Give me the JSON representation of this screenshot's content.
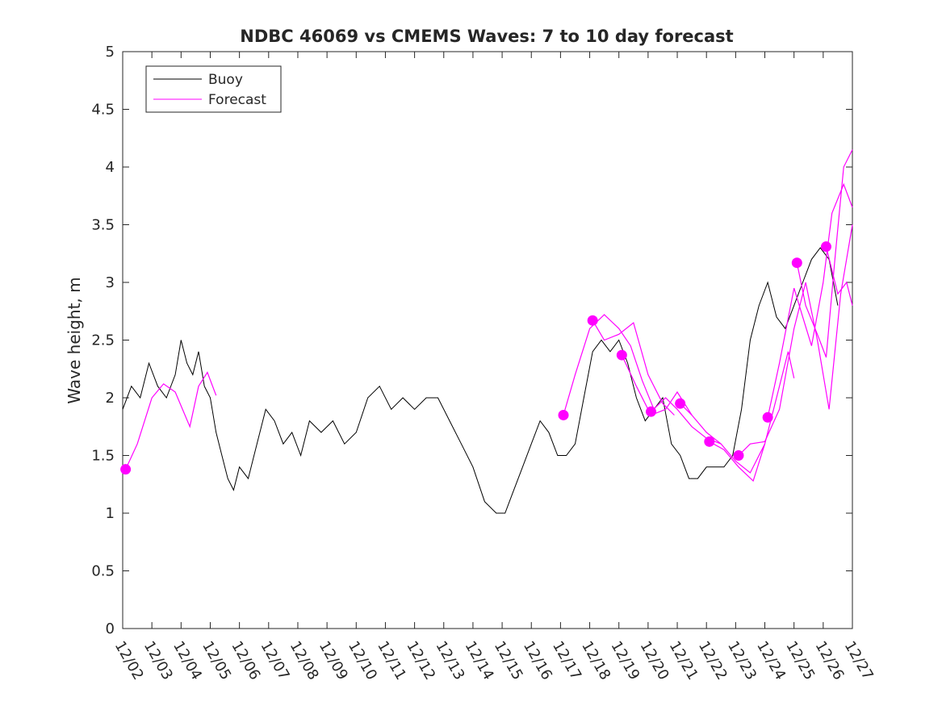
{
  "chart_data": {
    "type": "line",
    "title": "NDBC 46069 vs CMEMS Waves: 7 to 10 day forecast",
    "xlabel": "",
    "ylabel": "Wave height, m",
    "xlim": [
      0,
      25
    ],
    "ylim": [
      0,
      5
    ],
    "grid": false,
    "legend_position": "top-left",
    "x_tick_labels": [
      "12/02",
      "12/03",
      "12/04",
      "12/05",
      "12/06",
      "12/07",
      "12/08",
      "12/09",
      "12/10",
      "12/11",
      "12/12",
      "12/13",
      "12/14",
      "12/15",
      "12/16",
      "12/17",
      "12/18",
      "12/19",
      "12/20",
      "12/21",
      "12/22",
      "12/23",
      "12/24",
      "12/25",
      "12/26",
      "12/27"
    ],
    "y_ticks": [
      0,
      0.5,
      1,
      1.5,
      2,
      2.5,
      3,
      3.5,
      4,
      4.5,
      5
    ],
    "y_tick_labels": [
      "0",
      "0.5",
      "1",
      "1.5",
      "2",
      "2.5",
      "3",
      "3.5",
      "4",
      "4.5",
      "5"
    ],
    "colors": {
      "buoy": "#000000",
      "forecast": "#ff00ff"
    },
    "series": [
      {
        "name": "Buoy",
        "x": [
          0,
          0.3,
          0.6,
          0.9,
          1.2,
          1.5,
          1.8,
          2.0,
          2.2,
          2.4,
          2.6,
          2.8,
          3.0,
          3.2,
          3.4,
          3.6,
          3.8,
          4.0,
          4.3,
          4.6,
          4.9,
          5.2,
          5.5,
          5.8,
          6.1,
          6.4,
          6.8,
          7.2,
          7.6,
          8.0,
          8.4,
          8.8,
          9.2,
          9.6,
          10.0,
          10.4,
          10.8,
          11.2,
          11.6,
          12.0,
          12.4,
          12.8,
          13.1,
          13.4,
          13.7,
          14.0,
          14.3,
          14.6,
          14.9,
          15.2,
          15.5,
          15.8,
          16.1,
          16.4,
          16.7,
          17.0,
          17.3,
          17.6,
          17.9,
          18.2,
          18.5,
          18.8,
          19.1,
          19.4,
          19.7,
          20.0,
          20.3,
          20.6,
          20.9,
          21.2,
          21.5,
          21.8,
          22.1,
          22.4,
          22.7,
          23.0,
          23.3,
          23.6,
          23.9,
          24.2,
          24.5
        ],
        "y": [
          1.9,
          2.1,
          2.0,
          2.3,
          2.1,
          2.0,
          2.2,
          2.5,
          2.3,
          2.2,
          2.4,
          2.1,
          2.0,
          1.7,
          1.5,
          1.3,
          1.2,
          1.4,
          1.3,
          1.6,
          1.9,
          1.8,
          1.6,
          1.7,
          1.5,
          1.8,
          1.7,
          1.8,
          1.6,
          1.7,
          2.0,
          2.1,
          1.9,
          2.0,
          1.9,
          2.0,
          2.0,
          1.8,
          1.6,
          1.4,
          1.1,
          1.0,
          1.0,
          1.2,
          1.4,
          1.6,
          1.8,
          1.7,
          1.5,
          1.5,
          1.6,
          2.0,
          2.4,
          2.5,
          2.4,
          2.5,
          2.3,
          2.0,
          1.8,
          1.9,
          2.0,
          1.6,
          1.5,
          1.3,
          1.3,
          1.4,
          1.4,
          1.4,
          1.5,
          1.9,
          2.5,
          2.8,
          3.0,
          2.7,
          2.6,
          2.8,
          3.0,
          3.2,
          3.3,
          3.2,
          2.8
        ]
      },
      {
        "name": "Forecast",
        "segments": [
          {
            "x": [
              0.1,
              0.5,
              1.0,
              1.4,
              1.8,
              2.3,
              2.6,
              2.9,
              3.2
            ],
            "y": [
              1.38,
              1.6,
              2.0,
              2.12,
              2.05,
              1.75,
              2.1,
              2.22,
              2.02
            ]
          },
          {
            "x": [
              15.1,
              15.5,
              16.0,
              16.5,
              17.0,
              17.4,
              17.8,
              18.2
            ],
            "y": [
              1.85,
              2.2,
              2.6,
              2.72,
              2.6,
              2.45,
              2.15,
              1.9
            ]
          },
          {
            "x": [
              16.1,
              16.5,
              17.0,
              17.5,
              18.0,
              18.5,
              18.9
            ],
            "y": [
              2.67,
              2.5,
              2.55,
              2.65,
              2.2,
              1.95,
              1.85
            ]
          },
          {
            "x": [
              17.1,
              17.6,
              18.1,
              18.6,
              19.0,
              19.5
            ],
            "y": [
              2.37,
              2.1,
              1.85,
              1.9,
              2.05,
              1.85
            ]
          },
          {
            "x": [
              18.1,
              18.6,
              19.0,
              19.5,
              20.0,
              20.5
            ],
            "y": [
              1.88,
              2.0,
              1.9,
              1.75,
              1.65,
              1.6
            ]
          },
          {
            "x": [
              19.1,
              19.5,
              20.0,
              20.5,
              21.0,
              21.5,
              22.0
            ],
            "y": [
              1.95,
              1.85,
              1.7,
              1.6,
              1.45,
              1.35,
              1.6
            ]
          },
          {
            "x": [
              20.1,
              20.6,
              21.1,
              21.6,
              22.0,
              22.4,
              22.8,
              23.0
            ],
            "y": [
              1.62,
              1.55,
              1.4,
              1.28,
              1.6,
              2.0,
              2.4,
              2.17
            ]
          },
          {
            "x": [
              21.1,
              21.5,
              22.0,
              22.5,
              23.0,
              23.4,
              23.8,
              24.2,
              24.6,
              25.0
            ],
            "y": [
              1.5,
              1.6,
              1.62,
              1.9,
              2.6,
              3.0,
              2.5,
              1.9,
              2.9,
              3.5
            ]
          },
          {
            "x": [
              22.1,
              22.5,
              23.0,
              23.3,
              23.6,
              24.0,
              24.3,
              24.7,
              25.0
            ],
            "y": [
              1.83,
              2.3,
              2.95,
              2.7,
              2.45,
              3.0,
              3.6,
              3.85,
              3.65
            ]
          },
          {
            "x": [
              23.1,
              23.4,
              23.8,
              24.1,
              24.4,
              24.7,
              25.0
            ],
            "y": [
              3.17,
              2.8,
              2.55,
              2.35,
              3.2,
              4.0,
              4.15
            ]
          },
          {
            "x": [
              24.1,
              24.5,
              24.8,
              25.0
            ],
            "y": [
              3.31,
              2.9,
              3.0,
              2.8
            ]
          }
        ],
        "markers": {
          "x": [
            0.1,
            15.1,
            16.1,
            17.1,
            18.1,
            19.1,
            20.1,
            21.1,
            22.1,
            23.1,
            24.1
          ],
          "y": [
            1.38,
            1.85,
            2.67,
            2.37,
            1.88,
            1.95,
            1.62,
            1.5,
            1.83,
            3.17,
            3.31
          ]
        }
      }
    ]
  }
}
